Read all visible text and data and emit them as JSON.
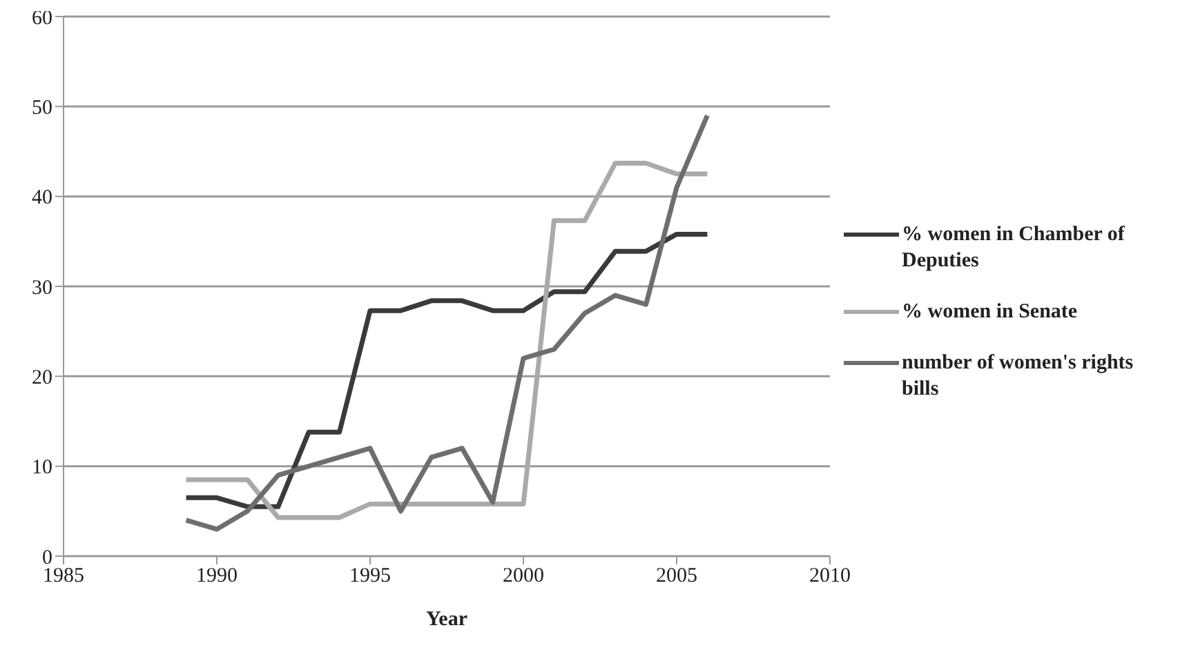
{
  "chart_data": {
    "type": "line",
    "xlabel": "Year",
    "x": [
      1989,
      1990,
      1991,
      1992,
      1993,
      1994,
      1995,
      1996,
      1997,
      1998,
      1999,
      2000,
      2001,
      2002,
      2003,
      2004,
      2005,
      2006
    ],
    "series": [
      {
        "name": "% women in Chamber of Deputies",
        "color": "#3a3a3a",
        "values": [
          6.5,
          6.5,
          5.5,
          5.5,
          13.8,
          13.8,
          27.3,
          27.3,
          28.4,
          28.4,
          27.3,
          27.3,
          29.4,
          29.4,
          33.9,
          33.9,
          35.8,
          35.8
        ]
      },
      {
        "name": "% women in Senate",
        "color": "#aaaaaa",
        "values": [
          8.5,
          8.5,
          8.5,
          4.3,
          4.3,
          4.3,
          5.8,
          5.8,
          5.8,
          5.8,
          5.8,
          5.8,
          37.3,
          37.3,
          43.7,
          43.7,
          42.5,
          42.5
        ]
      },
      {
        "name": "number of women's rights bills",
        "color": "#6e6e6e",
        "values": [
          4,
          3,
          5,
          9,
          10,
          11,
          12,
          5,
          11,
          12,
          6,
          22,
          23,
          27,
          29,
          28,
          41,
          49
        ]
      }
    ],
    "xlim": [
      1985,
      2010
    ],
    "xticks": [
      1985,
      1990,
      1995,
      2000,
      2005,
      2010
    ],
    "ylim": [
      0,
      60
    ],
    "yticks": [
      0,
      10,
      20,
      30,
      40,
      50,
      60
    ],
    "grid": "y",
    "legend": "right",
    "marker": "none",
    "line_style": "solid"
  }
}
